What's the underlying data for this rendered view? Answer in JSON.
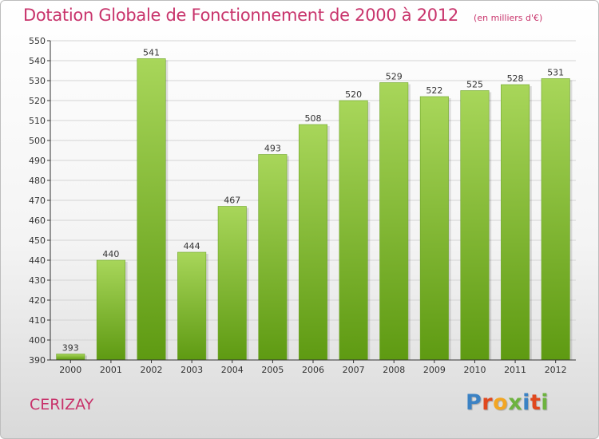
{
  "header": {
    "title": "Dotation Globale de Fonctionnement de 2000 à 2012",
    "subtitle": "(en milliers d'€)"
  },
  "place": "CERIZAY",
  "brand": {
    "letters": [
      "P",
      "r",
      "o",
      "x",
      "i",
      "t",
      "i"
    ],
    "colors": [
      "#3b82c4",
      "#e0481e",
      "#f2a623",
      "#6db33f",
      "#3b82c4",
      "#e0481e",
      "#6db33f"
    ]
  },
  "chart_data": {
    "type": "bar",
    "categories": [
      "2000",
      "2001",
      "2002",
      "2003",
      "2004",
      "2005",
      "2006",
      "2007",
      "2008",
      "2009",
      "2010",
      "2011",
      "2012"
    ],
    "values": [
      393,
      440,
      541,
      444,
      467,
      493,
      508,
      520,
      529,
      522,
      525,
      528,
      531
    ],
    "data_labels": [
      "393",
      "440",
      "541",
      "444",
      "467",
      "493",
      "508",
      "520",
      "529",
      "522",
      "525",
      "528",
      "531"
    ],
    "title": "Dotation Globale de Fonctionnement de 2000 à 2012",
    "subtitle": "(en milliers d'€)",
    "xlabel": "",
    "ylabel": "",
    "ylim": [
      390,
      550
    ],
    "yticks": [
      390,
      400,
      410,
      420,
      430,
      440,
      450,
      460,
      470,
      480,
      490,
      500,
      510,
      520,
      530,
      540,
      550
    ],
    "grid": true,
    "legend": "none",
    "colors": {
      "bar_top": "#a8d65a",
      "bar_bottom": "#5e9a12",
      "grid": "#d4d4d4",
      "axis": "#333333"
    }
  }
}
